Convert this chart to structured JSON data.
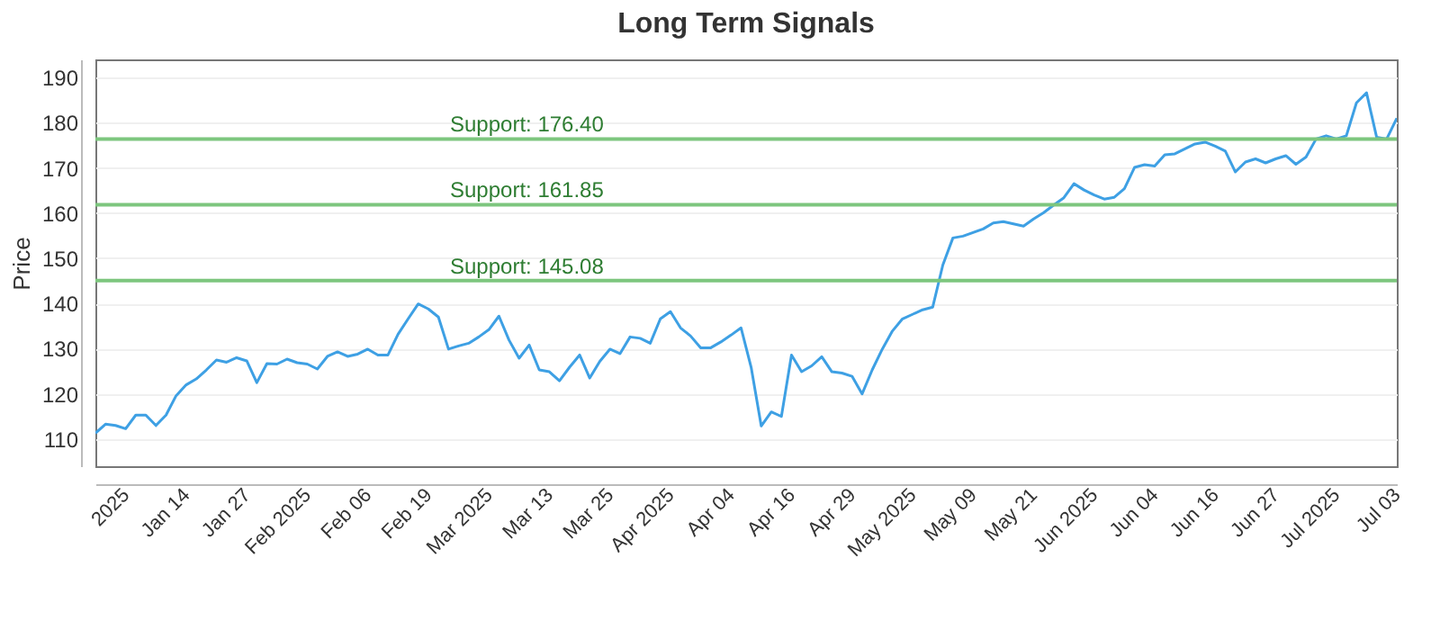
{
  "chart_data": {
    "type": "line",
    "title": "Long Term Signals",
    "ylabel": "Price",
    "categories": [
      null,
      null,
      null,
      "2025",
      null,
      null,
      null,
      null,
      null,
      "Jan 14",
      null,
      null,
      null,
      null,
      null,
      "Jan 27",
      null,
      null,
      null,
      null,
      null,
      "Feb 2025",
      null,
      null,
      null,
      null,
      null,
      "Feb 06",
      null,
      null,
      null,
      null,
      null,
      "Feb 19",
      null,
      null,
      null,
      null,
      null,
      "Mar 2025",
      null,
      null,
      null,
      null,
      null,
      "Mar 13",
      null,
      null,
      null,
      null,
      null,
      "Mar 25",
      null,
      null,
      null,
      null,
      null,
      "Apr 2025",
      null,
      null,
      null,
      null,
      null,
      "Apr 04",
      null,
      null,
      null,
      null,
      null,
      "Apr 16",
      null,
      null,
      null,
      null,
      null,
      "Apr 29",
      null,
      null,
      null,
      null,
      null,
      "May 2025",
      null,
      null,
      null,
      null,
      null,
      "May 09",
      null,
      null,
      null,
      null,
      null,
      "May 21",
      null,
      null,
      null,
      null,
      null,
      "Jun 2025",
      null,
      null,
      null,
      null,
      null,
      "Jun 04",
      null,
      null,
      null,
      null,
      null,
      "Jun 16",
      null,
      null,
      null,
      null,
      null,
      "Jun 27",
      null,
      null,
      null,
      null,
      null,
      "Jul 2025",
      null,
      null,
      null,
      null,
      null,
      "Jul 03"
    ],
    "series": [
      {
        "color": "#3ea0e4",
        "values": [
          111.3,
          113.3,
          113,
          112.3,
          115.3,
          115.3,
          113,
          115.3,
          119.6,
          122,
          123.3,
          125.3,
          127.5,
          127,
          128,
          127.3,
          122.5,
          126.7,
          126.6,
          127.7,
          126.9,
          126.6,
          125.5,
          128.3,
          129.3,
          128.3,
          128.8,
          129.9,
          128.6,
          128.6,
          133.2,
          136.6,
          139.9,
          138.8,
          137,
          129.9,
          130.6,
          131.2,
          132.6,
          134.2,
          137.2,
          131.9,
          127.9,
          130.8,
          125.3,
          124.9,
          122.9,
          125.9,
          128.6,
          123.5,
          127.2,
          129.9,
          128.9,
          132.6,
          132.3,
          131.2,
          136.6,
          138.2,
          134.6,
          132.8,
          130.2,
          130.2,
          131.5,
          133,
          134.6,
          125.9,
          112.9,
          116,
          115,
          128.6,
          124.9,
          126.2,
          128.2,
          124.9,
          124.6,
          123.9,
          120,
          125.3,
          129.9,
          133.9,
          136.6,
          137.6,
          138.6,
          139.2,
          148.5,
          154.5,
          154.9,
          155.7,
          156.5,
          157.8,
          158.1,
          157.6,
          157.1,
          158.7,
          160.1,
          161.8,
          163.4,
          166.5,
          165.1,
          164,
          163.1,
          163.5,
          165.4,
          170.1,
          170.7,
          170.4,
          172.9,
          173.1,
          174.2,
          175.3,
          175.7,
          174.8,
          173.7,
          169.1,
          171.3,
          172,
          171.1,
          172,
          172.7,
          170.8,
          172.4,
          176.4,
          177.1,
          176.4,
          177.1,
          184.4,
          186.6,
          176.8,
          176.4,
          181
        ]
      }
    ],
    "ylim": [
      104,
      194
    ],
    "yticks": [
      110,
      120,
      130,
      140,
      150,
      160,
      170,
      180,
      190
    ],
    "grid": "y",
    "ref_lines": [
      {
        "axis": "y",
        "value": 176.4,
        "label": "Support: 176.40",
        "color": "#7dc67e"
      },
      {
        "axis": "y",
        "value": 161.85,
        "label": "Support: 161.85",
        "color": "#7dc67e"
      },
      {
        "axis": "y",
        "value": 145.08,
        "label": "Support: 145.08",
        "color": "#7dc67e"
      }
    ]
  }
}
